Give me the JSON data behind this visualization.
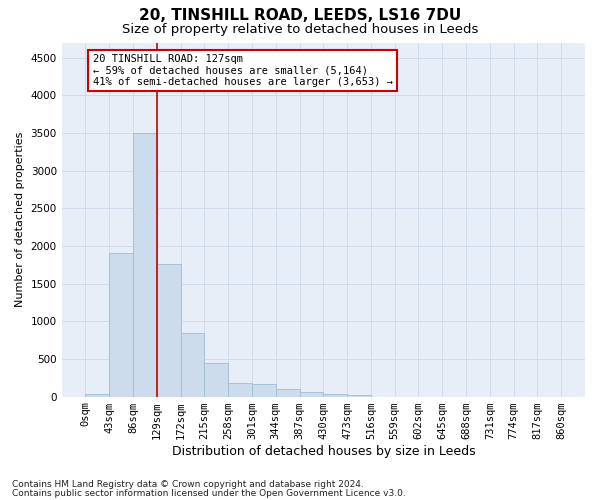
{
  "title1": "20, TINSHILL ROAD, LEEDS, LS16 7DU",
  "title2": "Size of property relative to detached houses in Leeds",
  "xlabel": "Distribution of detached houses by size in Leeds",
  "ylabel": "Number of detached properties",
  "bar_color": "#ccdcec",
  "bar_edge_color": "#a0bcd0",
  "grid_color": "#d0daea",
  "bg_color": "#e8eef8",
  "vline_color": "#cc0000",
  "vline_x": 3,
  "annotation_line1": "20 TINSHILL ROAD: 127sqm",
  "annotation_line2": "← 59% of detached houses are smaller (5,164)",
  "annotation_line3": "41% of semi-detached houses are larger (3,653) →",
  "annotation_box_color": "#ffffff",
  "annotation_box_edge": "#cc0000",
  "bins": [
    "0sqm",
    "43sqm",
    "86sqm",
    "129sqm",
    "172sqm",
    "215sqm",
    "258sqm",
    "301sqm",
    "344sqm",
    "387sqm",
    "430sqm",
    "473sqm",
    "516sqm",
    "559sqm",
    "602sqm",
    "645sqm",
    "688sqm",
    "731sqm",
    "774sqm",
    "817sqm",
    "860sqm"
  ],
  "values": [
    40,
    1900,
    3500,
    1760,
    840,
    450,
    175,
    165,
    95,
    60,
    35,
    25,
    0,
    0,
    0,
    0,
    0,
    0,
    0,
    0
  ],
  "ylim": [
    0,
    4700
  ],
  "yticks": [
    0,
    500,
    1000,
    1500,
    2000,
    2500,
    3000,
    3500,
    4000,
    4500
  ],
  "footnote1": "Contains HM Land Registry data © Crown copyright and database right 2024.",
  "footnote2": "Contains public sector information licensed under the Open Government Licence v3.0.",
  "title1_fontsize": 11,
  "title2_fontsize": 9.5,
  "xlabel_fontsize": 9,
  "ylabel_fontsize": 8,
  "tick_fontsize": 7.5,
  "annot_fontsize": 7.5,
  "footnote_fontsize": 6.5
}
